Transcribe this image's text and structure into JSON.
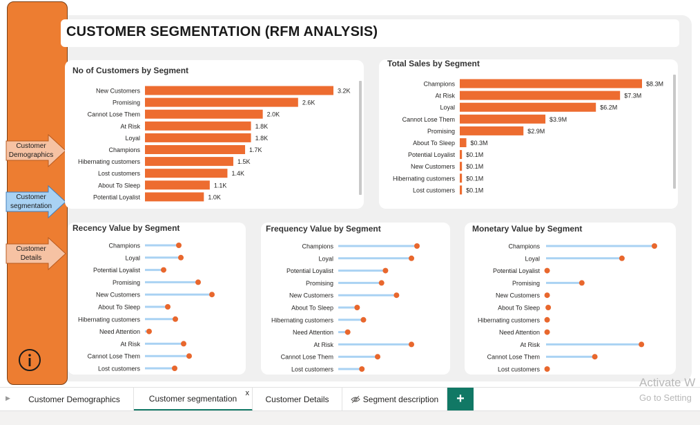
{
  "page": {
    "title": "CUSTOMER SEGMENTATION (RFM ANALYSIS)"
  },
  "colors": {
    "accent": "#ed7d31",
    "bar": "#ed6c30",
    "lollipop_line": "#a9d2f3",
    "lollipop_dot": "#e8672d",
    "nav_inactive": "#f6c2a3",
    "nav_active": "#a9d2f3",
    "tab_accent": "#117865"
  },
  "nav": [
    {
      "label": "Customer Demographics",
      "active": false
    },
    {
      "label": "Customer segmentation",
      "active": true
    },
    {
      "label": "Customer Details",
      "active": false
    }
  ],
  "info_icon": "info-circle-icon",
  "chart_data": [
    {
      "type": "bar",
      "title": "No of Customers by Segment",
      "categories": [
        "New Customers",
        "Promising",
        "Cannot Lose Them",
        "At Risk",
        "Loyal",
        "Champions",
        "Hibernating customers",
        "Lost customers",
        "About To Sleep",
        "Potential Loyalist"
      ],
      "values": [
        3200,
        2600,
        2000,
        1800,
        1800,
        1700,
        1500,
        1400,
        1100,
        1000
      ],
      "labels": [
        "3.2K",
        "2.6K",
        "2.0K",
        "1.8K",
        "1.8K",
        "1.7K",
        "1.5K",
        "1.4K",
        "1.1K",
        "1.0K"
      ],
      "xlim": [
        0,
        3200
      ]
    },
    {
      "type": "bar",
      "title": "Total Sales by Segment",
      "categories": [
        "Champions",
        "At Risk",
        "Loyal",
        "Cannot Lose Them",
        "Promising",
        "About To Sleep",
        "Potential Loyalist",
        "New Customers",
        "Hibernating customers",
        "Lost customers"
      ],
      "values": [
        8.3,
        7.3,
        6.2,
        3.9,
        2.9,
        0.3,
        0.1,
        0.1,
        0.1,
        0.1
      ],
      "labels": [
        "$8.3M",
        "$7.3M",
        "$6.2M",
        "$3.9M",
        "$2.9M",
        "$0.3M",
        "$0.1M",
        "$0.1M",
        "$0.1M",
        "$0.1M"
      ],
      "xlim": [
        0,
        8.3
      ]
    },
    {
      "type": "lollipop",
      "title": "Recency Value by Segment",
      "categories": [
        "Champions",
        "Loyal",
        "Potential Loyalist",
        "Promising",
        "New Customers",
        "About To Sleep",
        "Hibernating customers",
        "Need Attention",
        "At Risk",
        "Cannot Lose Them",
        "Lost customers"
      ],
      "values": [
        0.49,
        0.52,
        0.27,
        0.77,
        0.97,
        0.33,
        0.44,
        0.06,
        0.56,
        0.64,
        0.43
      ],
      "xlim": [
        0,
        1
      ]
    },
    {
      "type": "lollipop",
      "title": "Frequency Value by Segment",
      "categories": [
        "Champions",
        "Loyal",
        "Potential Loyalist",
        "Promising",
        "New Customers",
        "About To Sleep",
        "Hibernating customers",
        "Need Attention",
        "At Risk",
        "Cannot Lose Them",
        "Lost customers"
      ],
      "values": [
        1.0,
        0.93,
        0.6,
        0.55,
        0.74,
        0.24,
        0.32,
        0.12,
        0.93,
        0.5,
        0.3
      ],
      "xlim": [
        0,
        1
      ]
    },
    {
      "type": "lollipop",
      "title": "Monetary Value by Segment",
      "categories": [
        "Champions",
        "Loyal",
        "Potential Loyalist",
        "Promising",
        "New Customers",
        "About To Sleep",
        "Hibernating customers",
        "Need Attention",
        "At Risk",
        "Cannot Lose Them",
        "Lost customers"
      ],
      "values": [
        1.0,
        0.7,
        0.01,
        0.33,
        0.01,
        0.02,
        0.01,
        0.01,
        0.88,
        0.45,
        0.01
      ],
      "xlim": [
        0,
        1
      ]
    }
  ],
  "tabs": [
    {
      "label": "Customer Demographics"
    },
    {
      "label": "Customer segmentation",
      "close": "x"
    },
    {
      "label": "Customer Details"
    },
    {
      "label": "Segment description"
    }
  ],
  "add_tab_label": "+",
  "watermark": {
    "line1": "Activate W",
    "line2": "Go to Setting"
  }
}
